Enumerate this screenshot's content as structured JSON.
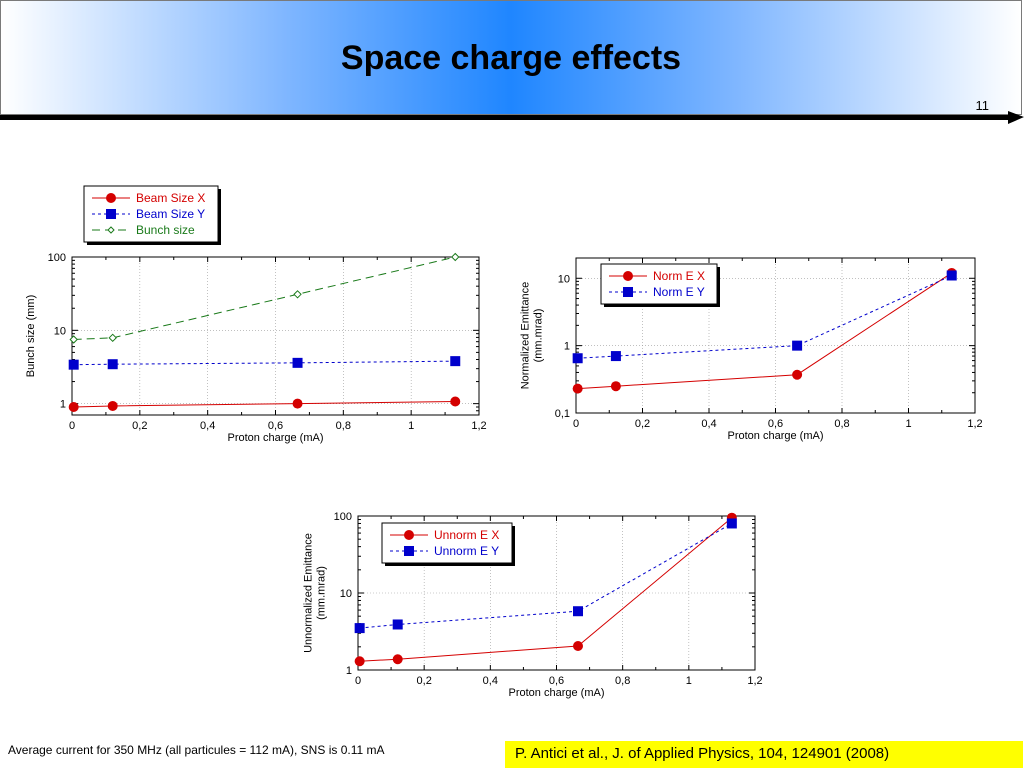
{
  "page": {
    "title": "Space charge effects",
    "page_number": "11",
    "footnote": "Average current for 350 MHz (all particules = 112 mA), SNS is 0.11 mA",
    "reference": "P. Antici et al., J. of Applied Physics, 104, 124901 (2008)"
  },
  "chart_data": [
    {
      "id": "bunch",
      "type": "line",
      "x_scale": "linear",
      "y_scale": "log",
      "xlim": [
        0,
        1.2
      ],
      "ylim": [
        0.7,
        100
      ],
      "grid": true,
      "xlabel": "Proton charge (mA)",
      "ylabel": "Bunch size (mm)",
      "x_ticks": [
        "0",
        "0,2",
        "0,4",
        "0,6",
        "0,8",
        "1",
        "1,2"
      ],
      "y_ticks": [
        "1",
        "10",
        "100"
      ],
      "legend_position": "above-left",
      "series": [
        {
          "name": "Beam Size X",
          "color": "#d40000",
          "marker": "circle",
          "dash": "solid",
          "x": [
            0.005,
            0.12,
            0.665,
            1.13
          ],
          "y": [
            0.9,
            0.93,
            1.0,
            1.07
          ]
        },
        {
          "name": "Beam Size Y",
          "color": "#0000cc",
          "marker": "square",
          "dash": "dotted",
          "x": [
            0.005,
            0.12,
            0.665,
            1.13
          ],
          "y": [
            3.4,
            3.45,
            3.6,
            3.8
          ]
        },
        {
          "name": "Bunch size",
          "color": "#1a7a1a",
          "marker": "diamond",
          "dash": "dashed",
          "x": [
            0.005,
            0.12,
            0.665,
            1.13
          ],
          "y": [
            7.5,
            7.9,
            31,
            100
          ]
        }
      ]
    },
    {
      "id": "norm",
      "type": "line",
      "x_scale": "linear",
      "y_scale": "log",
      "xlim": [
        0,
        1.2
      ],
      "ylim": [
        0.1,
        20
      ],
      "grid": true,
      "xlabel": "Proton charge (mA)",
      "ylabel": [
        "Normalized Emittance",
        "(mm.mrad)"
      ],
      "x_ticks": [
        "0",
        "0,2",
        "0,4",
        "0,6",
        "0,8",
        "1",
        "1,2"
      ],
      "y_ticks": [
        "0,1",
        "1",
        "10"
      ],
      "legend_position": "top-left",
      "series": [
        {
          "name": "Norm E X",
          "color": "#d40000",
          "marker": "circle",
          "dash": "solid",
          "x": [
            0.005,
            0.12,
            0.665,
            1.13
          ],
          "y": [
            0.23,
            0.25,
            0.37,
            12
          ]
        },
        {
          "name": "Norm E Y",
          "color": "#0000cc",
          "marker": "square",
          "dash": "dotted",
          "x": [
            0.005,
            0.12,
            0.665,
            1.13
          ],
          "y": [
            0.65,
            0.7,
            1.0,
            11
          ]
        }
      ]
    },
    {
      "id": "unnorm",
      "type": "line",
      "x_scale": "linear",
      "y_scale": "log",
      "xlim": [
        0,
        1.2
      ],
      "ylim": [
        1,
        100
      ],
      "grid": true,
      "xlabel": "Proton charge (mA)",
      "ylabel": [
        "Unnormalized Emittance",
        "(mm.mrad)"
      ],
      "x_ticks": [
        "0",
        "0,2",
        "0,4",
        "0,6",
        "0,8",
        "1",
        "1,2"
      ],
      "y_ticks": [
        "1",
        "10",
        "100"
      ],
      "legend_position": "top-left",
      "series": [
        {
          "name": "Unnorm E X",
          "color": "#d40000",
          "marker": "circle",
          "dash": "solid",
          "x": [
            0.005,
            0.12,
            0.665,
            1.13
          ],
          "y": [
            1.3,
            1.38,
            2.05,
            95
          ]
        },
        {
          "name": "Unnorm E Y",
          "color": "#0000cc",
          "marker": "square",
          "dash": "dotted",
          "x": [
            0.005,
            0.12,
            0.665,
            1.13
          ],
          "y": [
            3.5,
            3.9,
            5.8,
            80
          ]
        }
      ]
    }
  ]
}
